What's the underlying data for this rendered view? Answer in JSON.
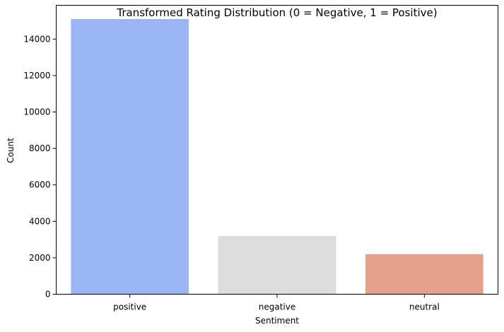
{
  "chart_data": {
    "type": "bar",
    "title": "Transformed Rating Distribution (0 = Negative, 1 = Positive)",
    "xlabel": "Sentiment",
    "ylabel": "Count",
    "categories": [
      "positive",
      "negative",
      "neutral"
    ],
    "values": [
      15100,
      3200,
      2200
    ],
    "colors": [
      "#9bb5f2",
      "#dcdcdc",
      "#e5a18a"
    ],
    "ylim": [
      0,
      15855
    ],
    "yticks": [
      0,
      2000,
      4000,
      6000,
      8000,
      10000,
      12000,
      14000
    ],
    "grid": false,
    "legend": "none"
  }
}
